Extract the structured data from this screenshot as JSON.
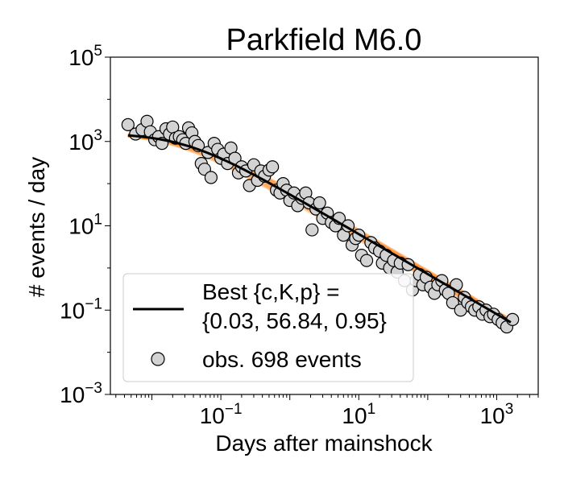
{
  "chart_data": {
    "type": "scatter",
    "title": "Parkfield M6.0",
    "xlabel": "Days after mainshock",
    "ylabel": "# events / day",
    "x_scale": "log",
    "y_scale": "log",
    "xlim": [
      0.0025,
      4000
    ],
    "ylim": [
      0.001,
      100000
    ],
    "x_ticks": [
      {
        "value": 0.1,
        "base": "10",
        "exp": "−1"
      },
      {
        "value": 10,
        "base": "10",
        "exp": "1"
      },
      {
        "value": 1000,
        "base": "10",
        "exp": "3"
      }
    ],
    "y_ticks": [
      {
        "value": 0.001,
        "base": "10",
        "exp": "−3"
      },
      {
        "value": 0.1,
        "base": "10",
        "exp": "−1"
      },
      {
        "value": 10,
        "base": "10",
        "exp": "1"
      },
      {
        "value": 1000,
        "base": "10",
        "exp": "3"
      },
      {
        "value": 100000,
        "base": "10",
        "exp": "5"
      }
    ],
    "grid": false,
    "legend_placement": "lower-left",
    "colors": {
      "best_fit": "#000000",
      "ensemble": "#ff7f0e",
      "marker_fill": "#d3d3d3",
      "marker_edge": "#000000"
    },
    "fit": {
      "c": 0.03,
      "K": 56.84,
      "p": 0.95,
      "x_range": [
        0.0045,
        1600
      ],
      "ensemble_members": 12
    },
    "legend": {
      "fit_label_line1": "Best {c,K,p} =",
      "fit_label_line2": "{0.03, 56.84, 0.95}",
      "obs_label": "obs. 698 events"
    },
    "series": [
      {
        "kind": "observations",
        "x": [
          0.0045,
          0.0058,
          0.0072,
          0.0085,
          0.0095,
          0.011,
          0.0125,
          0.014,
          0.016,
          0.018,
          0.02,
          0.022,
          0.025,
          0.028,
          0.031,
          0.034,
          0.038,
          0.042,
          0.047,
          0.052,
          0.058,
          0.065,
          0.072,
          0.08,
          0.09,
          0.1,
          0.11,
          0.125,
          0.14,
          0.16,
          0.18,
          0.2,
          0.23,
          0.26,
          0.3,
          0.34,
          0.38,
          0.43,
          0.5,
          0.56,
          0.64,
          0.72,
          0.8,
          0.9,
          1.0,
          1.15,
          1.3,
          1.5,
          1.7,
          1.9,
          2.1,
          2.4,
          2.7,
          3.0,
          3.5,
          4.0,
          4.6,
          5.2,
          6.0,
          7.0,
          8.0,
          9.0,
          10.0,
          11.0,
          13.0,
          15.0,
          17.0,
          20.0,
          22.0,
          25.0,
          28.0,
          32.0,
          36.0,
          40.0,
          46.0,
          52.0,
          60.0,
          68.0,
          76.0,
          85.0,
          95.0,
          110.0,
          125.0,
          140.0,
          160.0,
          180.0,
          200.0,
          230.0,
          260.0,
          300.0,
          340.0,
          380.0,
          430.0,
          480.0,
          550.0,
          620.0,
          700.0,
          800.0,
          900.0,
          1050.0,
          1200.0,
          1400.0,
          1700.0
        ],
        "y": [
          2500,
          1500,
          1900,
          3000,
          1700,
          1100,
          1300,
          900,
          2000,
          1500,
          2200,
          1200,
          1300,
          1100,
          900,
          2100,
          1600,
          1000,
          800,
          300,
          220,
          550,
          140,
          900,
          650,
          400,
          500,
          300,
          700,
          400,
          180,
          250,
          200,
          90,
          280,
          120,
          200,
          150,
          210,
          250,
          70,
          60,
          100,
          70,
          40,
          60,
          30,
          45,
          60,
          35,
          8,
          25,
          35,
          15,
          20,
          12,
          10,
          15,
          6,
          10,
          3.5,
          5,
          6,
          2,
          1.5,
          4,
          3,
          2.5,
          1.3,
          2,
          1,
          1.5,
          0.8,
          1.3,
          0.5,
          1.2,
          0.3,
          0.5,
          0.7,
          0.4,
          0.6,
          0.35,
          0.25,
          0.4,
          0.5,
          0.3,
          0.25,
          0.15,
          0.4,
          0.1,
          0.2,
          0.15,
          0.12,
          0.1,
          0.12,
          0.08,
          0.1,
          0.07,
          0.08,
          0.06,
          0.05,
          0.04,
          0.06
        ]
      }
    ]
  }
}
